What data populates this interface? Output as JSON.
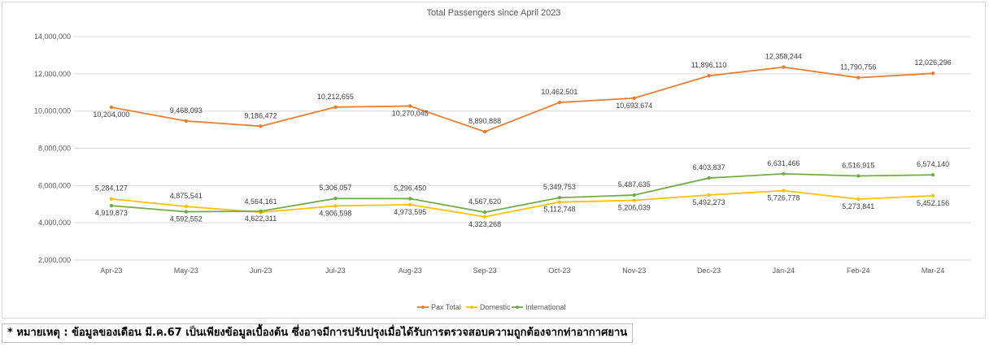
{
  "chart_data": {
    "type": "line",
    "title": "Total Passengers since April 2023",
    "categories": [
      "Apr-23",
      "May-23",
      "Jun-23",
      "Jul-23",
      "Aug-23",
      "Sep-23",
      "Oct-23",
      "Nov-23",
      "Dec-23",
      "Jan-24",
      "Feb-24",
      "Mar-24"
    ],
    "ylim": [
      2000000,
      14000000
    ],
    "yticks": [
      "2,000,000",
      "4,000,000",
      "6,000,000",
      "8,000,000",
      "10,000,000",
      "12,000,000",
      "14,000,000"
    ],
    "grid": true,
    "legend_position": "bottom",
    "series": [
      {
        "name": "Pax Total",
        "color": "#ed7d31",
        "values": [
          10204000,
          9468093,
          9186472,
          10212655,
          10270045,
          8890888,
          10462501,
          10693674,
          11896110,
          12358244,
          11790756,
          12026296
        ],
        "labels": [
          "10,204,000",
          "9,468,093",
          "9,186,472",
          "10,212,655",
          "10,270,045",
          "8,890,888",
          "10,462,501",
          "10,693,674",
          "11,896,110",
          "12,358,244",
          "11,790,756",
          "12,026,296"
        ]
      },
      {
        "name": "Domestic",
        "color": "#ffc000",
        "values": [
          5284127,
          4875541,
          4564161,
          4906598,
          4973595,
          4323268,
          5112748,
          5206039,
          5492273,
          5726778,
          5273841,
          5452156
        ],
        "labels": [
          "5,284,127",
          "4,875,541",
          "4,564,161",
          "4,906,598",
          "4,973,595",
          "4,323,268",
          "5,112,748",
          "5,206,039",
          "5,492,273",
          "5,726,778",
          "5,273,841",
          "5,452,156"
        ]
      },
      {
        "name": "International",
        "color": "#70ad47",
        "values": [
          4919873,
          4592552,
          4622311,
          5306057,
          5296450,
          4567620,
          5349753,
          5487635,
          6403837,
          6631466,
          6516915,
          6574140
        ],
        "labels": [
          "4,919,873",
          "4,592,552",
          "4,622,311",
          "5,306,057",
          "5,296,450",
          "4,567,620",
          "5,349,753",
          "5,487,635",
          "6,403,837",
          "6,631,466",
          "6,516,915",
          "6,574,140"
        ]
      }
    ]
  },
  "footnote": "* หมายเหตุ : ข้อมูลของเดือน มี.ค.67 เป็นเพียงข้อมูลเบื้องต้น ซึ่งอาจมีการปรับปรุงเมื่อได้รับการตรวจสอบความถูกต้องจากท่าอากาศยาน"
}
